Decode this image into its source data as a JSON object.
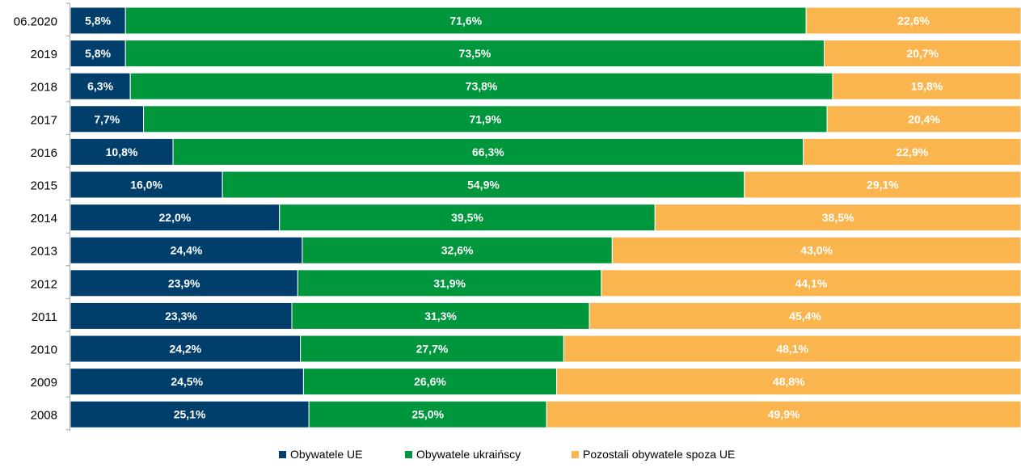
{
  "colors": {
    "eu": "#003f6b",
    "ua": "#00963c",
    "other": "#fbb54e",
    "axis": "#a6a6a6"
  },
  "chart_data": {
    "type": "bar",
    "orientation": "horizontal",
    "stacked": "100%",
    "title": "",
    "xlabel": "",
    "ylabel": "",
    "grid": false,
    "legend_position": "bottom",
    "value_format": "percent-comma-1dp",
    "categories": [
      "06.2020",
      "2019",
      "2018",
      "2017",
      "2016",
      "2015",
      "2014",
      "2013",
      "2012",
      "2011",
      "2010",
      "2009",
      "2008"
    ],
    "series": [
      {
        "name": "Obywatele UE",
        "color_key": "eu",
        "values": [
          5.8,
          5.8,
          6.3,
          7.7,
          10.8,
          16.0,
          22.0,
          24.4,
          23.9,
          23.3,
          24.2,
          24.5,
          25.1
        ],
        "labels": [
          "5,8%",
          "5,8%",
          "6,3%",
          "7,7%",
          "10,8%",
          "16,0%",
          "22,0%",
          "24,4%",
          "23,9%",
          "23,3%",
          "24,2%",
          "24,5%",
          "25,1%"
        ]
      },
      {
        "name": "Obywatele ukraińscy",
        "color_key": "ua",
        "values": [
          71.6,
          73.5,
          73.8,
          71.9,
          66.3,
          54.9,
          39.5,
          32.6,
          31.9,
          31.3,
          27.7,
          26.6,
          25.0
        ],
        "labels": [
          "71,6%",
          "73,5%",
          "73,8%",
          "71,9%",
          "66,3%",
          "54,9%",
          "39,5%",
          "32,6%",
          "31,9%",
          "31,3%",
          "27,7%",
          "26,6%",
          "25,0%"
        ]
      },
      {
        "name": "Pozostali obywatele spoza UE",
        "color_key": "other",
        "values": [
          22.6,
          20.7,
          19.8,
          20.4,
          22.9,
          29.1,
          38.5,
          43.0,
          44.1,
          45.4,
          48.1,
          48.8,
          49.9
        ],
        "labels": [
          "22,6%",
          "20,7%",
          "19,8%",
          "20,4%",
          "22,9%",
          "29,1%",
          "38,5%",
          "43,0%",
          "44,1%",
          "45,4%",
          "48,1%",
          "48,8%",
          "49,9%"
        ]
      }
    ]
  }
}
